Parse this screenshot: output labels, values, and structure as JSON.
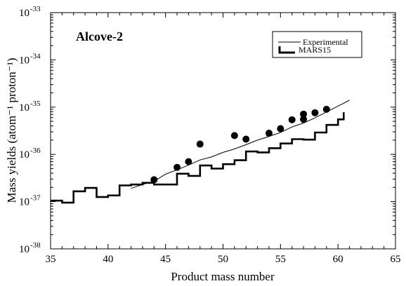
{
  "chart_data": {
    "type": "line",
    "annotation": "Alcove-2",
    "xlabel": "Product mass number",
    "ylabel": "Mass yields (atom⁻¹ proton⁻¹)",
    "xlim": [
      35,
      65
    ],
    "ylim": [
      1e-38,
      1e-33
    ],
    "yscale": "log",
    "x_ticks": [
      35,
      40,
      45,
      50,
      55,
      60,
      65
    ],
    "y_tick_exponents": [
      -38,
      -37,
      -36,
      -35,
      -34,
      -33
    ],
    "legend": {
      "position": "top-right",
      "entries": [
        "Experimental",
        "MARS15"
      ]
    },
    "series": [
      {
        "name": "Experimental",
        "style": "thin-line",
        "x": [
          42,
          43,
          44,
          45,
          46,
          47,
          48,
          49,
          50,
          51,
          52,
          53,
          54,
          55,
          56,
          57,
          58,
          59,
          60,
          61
        ],
        "y": [
          1.9e-37,
          2.3e-37,
          2.7e-37,
          3.8e-37,
          4.7e-37,
          5.9e-37,
          7.6e-37,
          8.8e-37,
          1.1e-36,
          1.3e-36,
          1.6e-36,
          2e-36,
          2.4e-36,
          2.9e-36,
          3.8e-36,
          4.6e-36,
          5.9e-36,
          7.9e-36,
          1.05e-35,
          1.4e-35
        ]
      },
      {
        "name": "MARS15",
        "style": "step",
        "x": [
          35,
          36,
          37,
          38,
          39,
          40,
          41,
          42,
          43,
          44,
          45,
          46,
          47,
          48,
          49,
          50,
          51,
          52,
          53,
          54,
          55,
          56,
          57,
          58,
          59,
          60
        ],
        "y": [
          1.05e-37,
          9.5e-38,
          1.65e-37,
          1.95e-37,
          1.25e-37,
          1.35e-37,
          2.2e-37,
          2.3e-37,
          2.5e-37,
          2.3e-37,
          2.3e-37,
          3.9e-37,
          3.5e-37,
          5.8e-37,
          5e-37,
          6.2e-37,
          7.5e-37,
          1.15e-36,
          1.1e-36,
          1.35e-36,
          1.7e-36,
          2.1e-36,
          2.05e-36,
          2.9e-36,
          4.2e-36,
          5.5e-36
        ],
        "x_end": 60.5,
        "y_end": 7.8e-36
      },
      {
        "name": "Experimental points",
        "style": "markers",
        "x": [
          44,
          46,
          47,
          48,
          51,
          52,
          54,
          55,
          56,
          57,
          57,
          58,
          59
        ],
        "y": [
          2.9e-37,
          5.3e-37,
          7e-37,
          1.65e-36,
          2.5e-36,
          2.1e-36,
          2.8e-36,
          3.5e-36,
          5.4e-36,
          5.5e-36,
          7.1e-36,
          7.6e-36,
          9e-36
        ]
      }
    ]
  }
}
